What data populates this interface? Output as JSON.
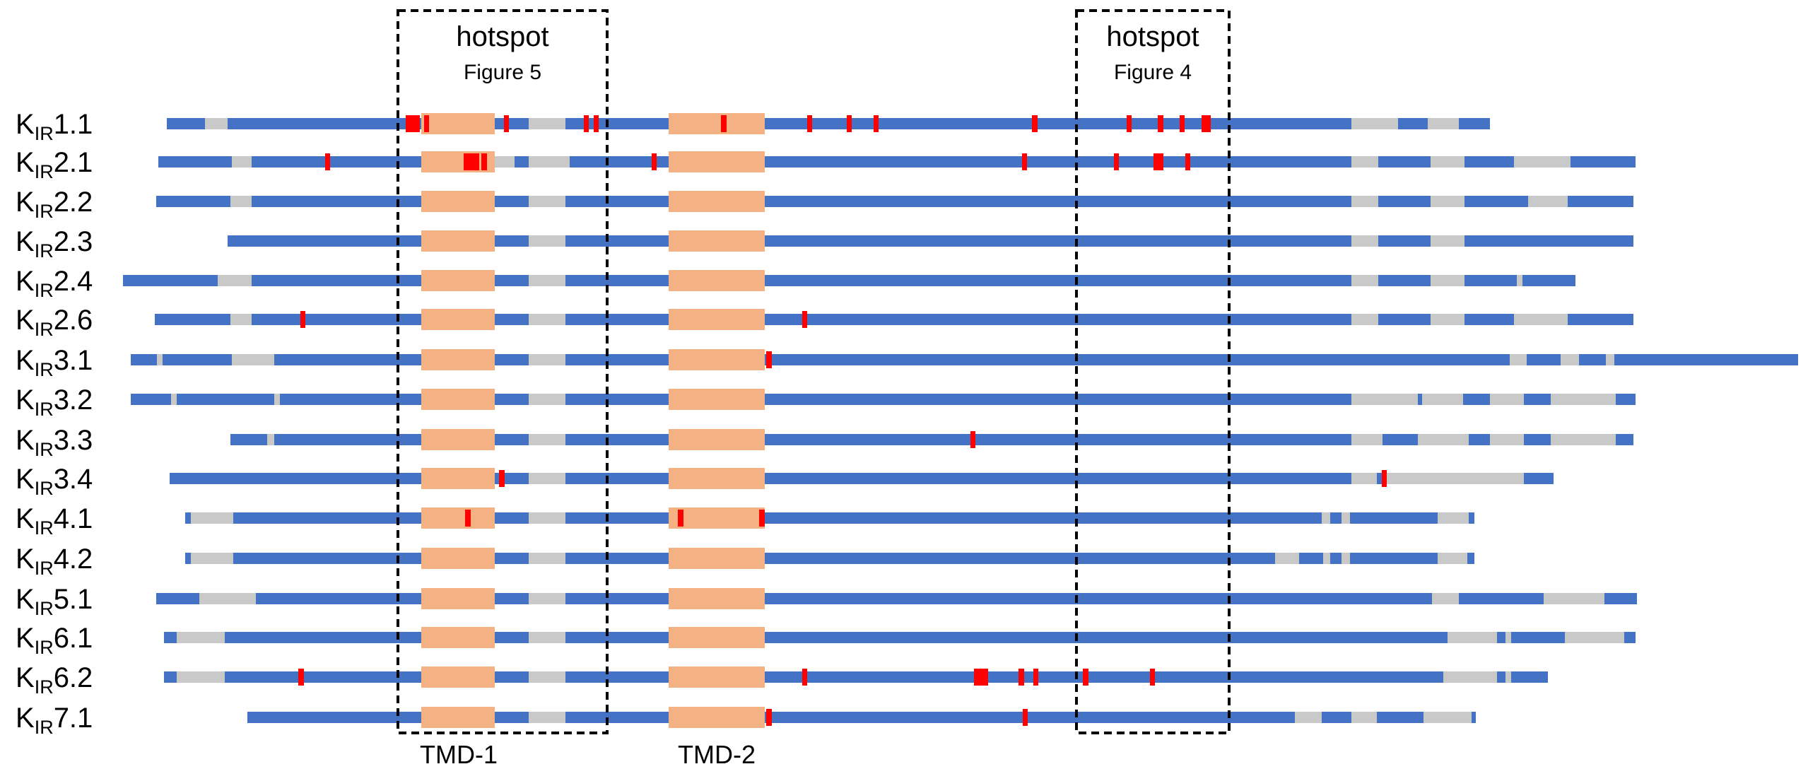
{
  "colors": {
    "backbone": "#4472C4",
    "gap": "#C9C9C9",
    "tmd": "#F4B183",
    "mutation": "#FF0000",
    "box": "#000000"
  },
  "hotspots": [
    {
      "title": "hotspot",
      "subtitle": "Figure 5"
    },
    {
      "title": "hotspot",
      "subtitle": "Figure 4"
    }
  ],
  "tmd_labels": [
    "TMD-1",
    "TMD-2"
  ],
  "channels": [
    {
      "prefix": "K",
      "sub": "IR",
      "suffix": "1.1"
    },
    {
      "prefix": "K",
      "sub": "IR",
      "suffix": "2.1"
    },
    {
      "prefix": "K",
      "sub": "IR",
      "suffix": "2.2"
    },
    {
      "prefix": "K",
      "sub": "IR",
      "suffix": "2.3"
    },
    {
      "prefix": "K",
      "sub": "IR",
      "suffix": "2.4"
    },
    {
      "prefix": "K",
      "sub": "IR",
      "suffix": "2.6"
    },
    {
      "prefix": "K",
      "sub": "IR",
      "suffix": "3.1"
    },
    {
      "prefix": "K",
      "sub": "IR",
      "suffix": "3.2"
    },
    {
      "prefix": "K",
      "sub": "IR",
      "suffix": "3.3"
    },
    {
      "prefix": "K",
      "sub": "IR",
      "suffix": "3.4"
    },
    {
      "prefix": "K",
      "sub": "IR",
      "suffix": "4.1"
    },
    {
      "prefix": "K",
      "sub": "IR",
      "suffix": "4.2"
    },
    {
      "prefix": "K",
      "sub": "IR",
      "suffix": "5.1"
    },
    {
      "prefix": "K",
      "sub": "IR",
      "suffix": "6.1"
    },
    {
      "prefix": "K",
      "sub": "IR",
      "suffix": "6.2"
    },
    {
      "prefix": "K",
      "sub": "IR",
      "suffix": "7.1"
    }
  ]
}
